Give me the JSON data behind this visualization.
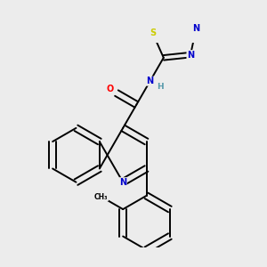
{
  "background_color": "#ececec",
  "bond_color": "#000000",
  "figsize": [
    3.0,
    3.0
  ],
  "dpi": 100,
  "atom_colors": {
    "N": "#0000cc",
    "O": "#ff0000",
    "S": "#cccc00",
    "C": "#000000",
    "H": "#5599aa"
  },
  "lw": 1.4,
  "fs": 7.0
}
